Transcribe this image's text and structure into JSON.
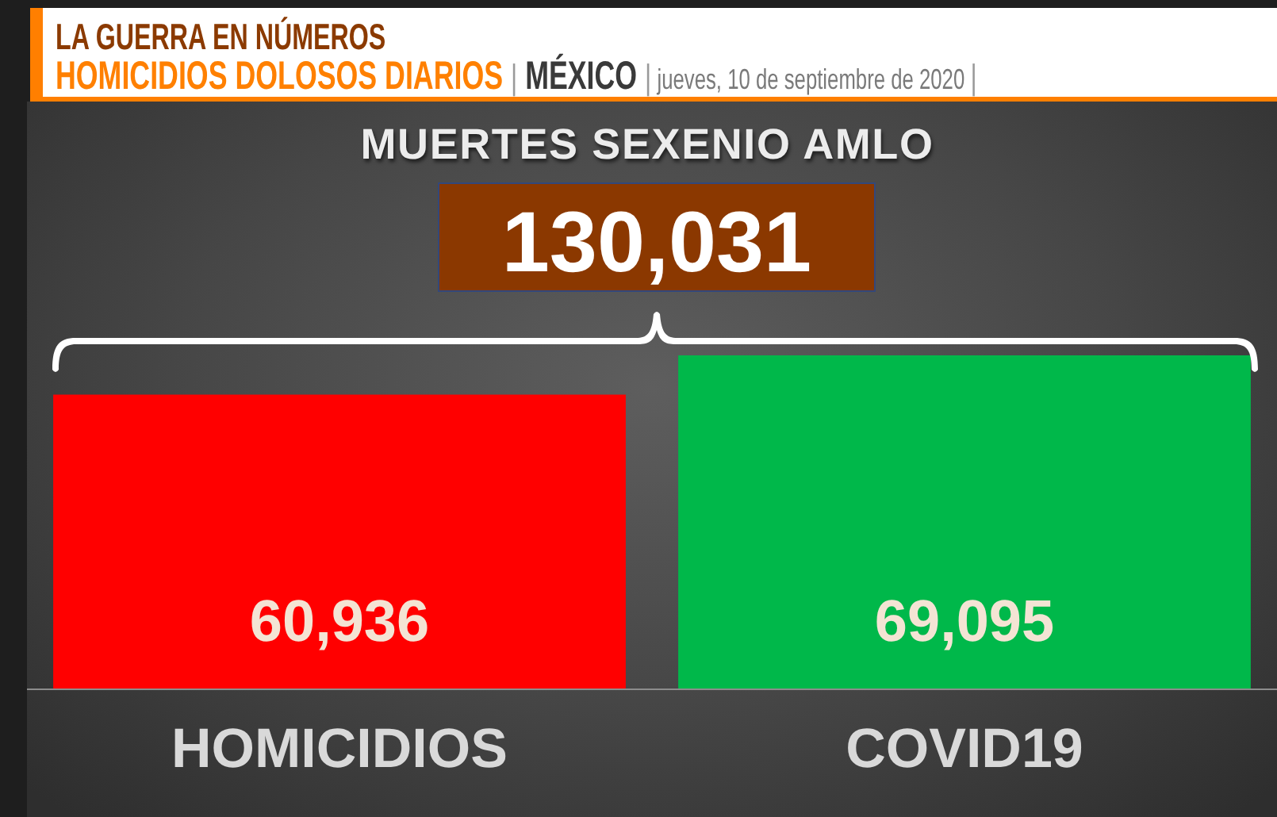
{
  "chart_data": {
    "type": "bar",
    "title": "LA GUERRA EN NÚMEROS",
    "subtitle": "HOMICIDIOS DOLOSOS DIARIOS | MÉXICO | jueves, 10 de septiembre de 2020 |",
    "annotations": [
      "MUERTES SEXENIO AMLO",
      "130,031"
    ],
    "categories": [
      "HOMICIDIOS",
      "COVID19"
    ],
    "values": [
      60936,
      69095
    ],
    "colors": [
      "#ff0000",
      "#00b84a"
    ],
    "value_labels": [
      "60,936",
      "69,095"
    ]
  }
}
